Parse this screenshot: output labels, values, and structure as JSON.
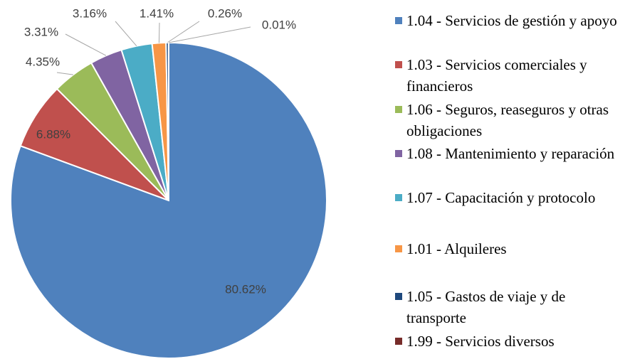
{
  "chart_data": {
    "type": "pie",
    "categories": [
      "1.04 - Servicios de gestión y apoyo",
      "1.03 - Servicios comerciales y financieros",
      "1.06 - Seguros, reaseguros y otras obligaciones",
      "1.08 - Mantenimiento y reparación",
      "1.07 - Capacitación y protocolo",
      "1.01 - Alquileres",
      "1.05 - Gastos de viaje y de transporte",
      "1.99 - Servicios diversos"
    ],
    "values": [
      80.62,
      6.88,
      4.35,
      3.31,
      3.16,
      1.41,
      0.26,
      0.01
    ],
    "value_labels": [
      "80.62%",
      "6.88%",
      "4.35%",
      "3.31%",
      "3.16%",
      "1.41%",
      "0.26%",
      "0.01%"
    ],
    "colors": [
      "#4f81bd",
      "#c0504d",
      "#9bbb59",
      "#8064a2",
      "#4bacc6",
      "#f79646",
      "#1f497d",
      "#772c2a"
    ],
    "legend": "right"
  }
}
